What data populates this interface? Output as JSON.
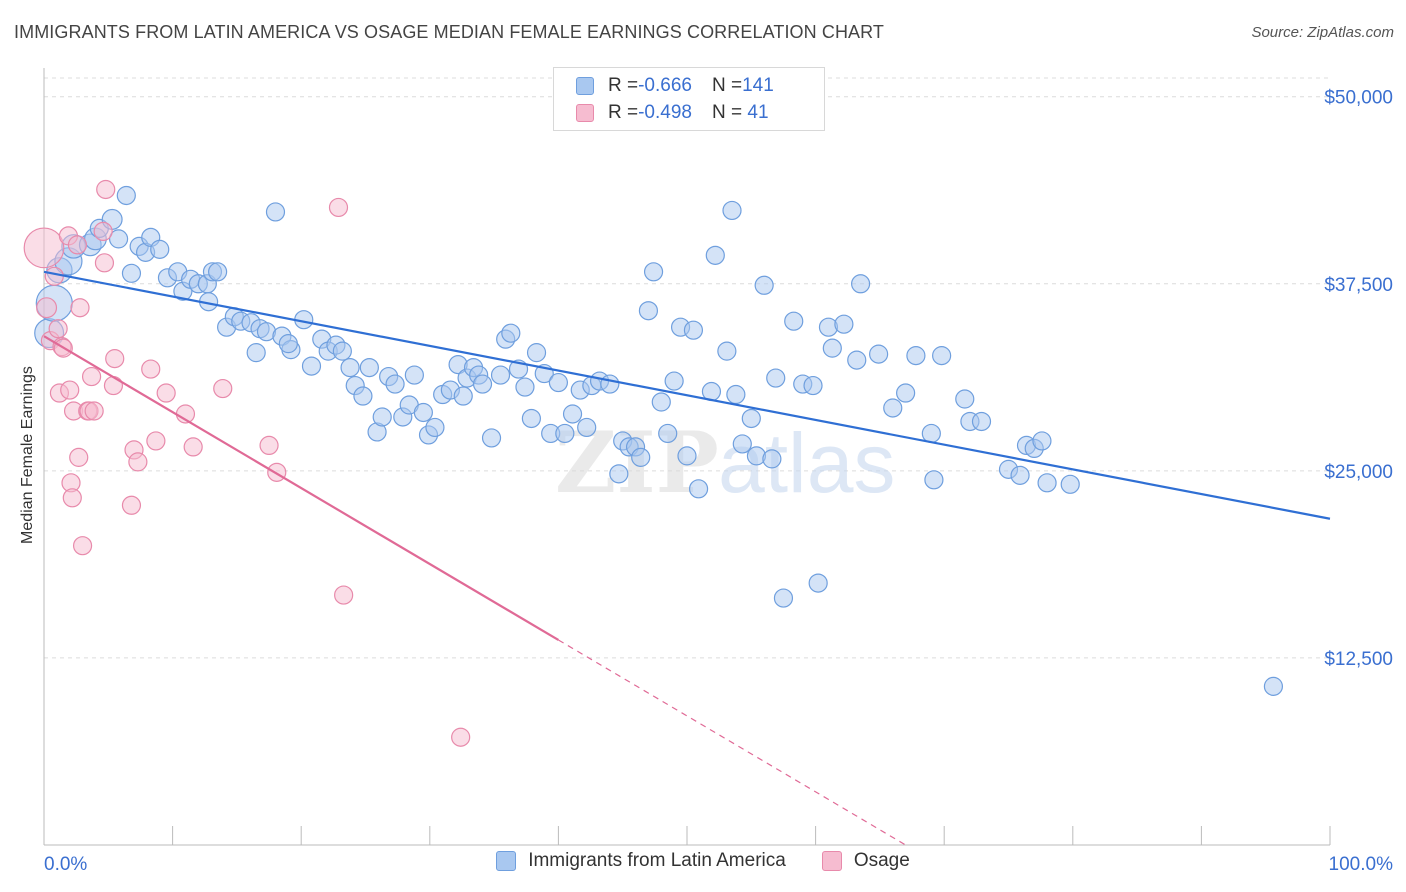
{
  "title": "IMMIGRANTS FROM LATIN AMERICA VS OSAGE MEDIAN FEMALE EARNINGS CORRELATION CHART",
  "source": "Source: ZipAtlas.com",
  "watermark": "ZIPatlas",
  "colors": {
    "blue_fill": "#a9c8f0",
    "blue_stroke": "#6f9fde",
    "blue_line": "#2f6fd4",
    "pink_fill": "#f6bcd0",
    "pink_stroke": "#e88aab",
    "pink_line": "#e06a96",
    "tick_label": "#3a6fd0",
    "grid": "#dcdcdc"
  },
  "stats": [
    {
      "r_label": "R = ",
      "r_value": "-0.666",
      "n_label": "N = ",
      "n_value": "141"
    },
    {
      "r_label": "R = ",
      "r_value": "-0.498",
      "n_label": "N = ",
      "n_value": " 41"
    }
  ],
  "chart_data": {
    "type": "scatter",
    "title": "IMMIGRANTS FROM LATIN AMERICA VS OSAGE MEDIAN FEMALE EARNINGS CORRELATION CHART",
    "xlabel": "",
    "ylabel": "Median Female Earnings",
    "xlim": [
      0,
      100
    ],
    "ylim": [
      0,
      51250
    ],
    "x_tick_labels": [
      "0.0%",
      "100.0%"
    ],
    "y_ticks": [
      12500,
      25000,
      37500,
      50000
    ],
    "y_tick_labels": [
      "$12,500",
      "$25,000",
      "$37,500",
      "$50,000"
    ],
    "grid": true,
    "legend_position": "bottom",
    "series": [
      {
        "name": "Immigrants from Latin America",
        "color": "#a9c8f0",
        "trend": {
          "x": [
            0,
            100
          ],
          "y": [
            38300,
            21800
          ]
        },
        "points": [
          [
            0.4,
            34200,
            1.6
          ],
          [
            0.8,
            36200,
            2.0
          ],
          [
            1.2,
            38400,
            1.4
          ],
          [
            1.9,
            39000,
            1.5
          ],
          [
            2.3,
            40000,
            1.3
          ],
          [
            3.6,
            40100,
            1.2
          ],
          [
            4.0,
            40500,
            1.2
          ],
          [
            4.3,
            41200,
            1.0
          ],
          [
            5.3,
            41800,
            1.1
          ],
          [
            6.4,
            43400,
            1.0
          ],
          [
            5.8,
            40500,
            1.0
          ],
          [
            6.8,
            38200,
            1.0
          ],
          [
            7.4,
            40000,
            1.0
          ],
          [
            7.9,
            39600,
            1.0
          ],
          [
            8.3,
            40600,
            1.0
          ],
          [
            9.0,
            39800,
            1.0
          ],
          [
            9.6,
            37900,
            1.0
          ],
          [
            10.4,
            38300,
            1.0
          ],
          [
            10.8,
            37000,
            1.0
          ],
          [
            11.4,
            37800,
            1.0
          ],
          [
            12.0,
            37500,
            1.0
          ],
          [
            12.7,
            37500,
            1.0
          ],
          [
            13.1,
            38300,
            1.0
          ],
          [
            13.5,
            38300,
            1.0
          ],
          [
            12.8,
            36300,
            1.0
          ],
          [
            14.2,
            34600,
            1.0
          ],
          [
            14.8,
            35300,
            1.0
          ],
          [
            15.3,
            35000,
            1.0
          ],
          [
            16.1,
            34900,
            1.0
          ],
          [
            16.8,
            34500,
            1.0
          ],
          [
            17.3,
            34300,
            1.0
          ],
          [
            16.5,
            32900,
            1.0
          ],
          [
            18.5,
            34000,
            1.0
          ],
          [
            19.2,
            33100,
            1.0
          ],
          [
            19.0,
            33500,
            1.0
          ],
          [
            18.0,
            42300,
            1.0
          ],
          [
            20.2,
            35100,
            1.0
          ],
          [
            20.8,
            32000,
            1.0
          ],
          [
            21.6,
            33800,
            1.0
          ],
          [
            22.1,
            33000,
            1.0
          ],
          [
            22.7,
            33400,
            1.0
          ],
          [
            23.2,
            33000,
            1.0
          ],
          [
            23.8,
            31900,
            1.0
          ],
          [
            24.2,
            30700,
            1.0
          ],
          [
            24.8,
            30000,
            1.0
          ],
          [
            25.3,
            31900,
            1.0
          ],
          [
            25.9,
            27600,
            1.0
          ],
          [
            26.3,
            28600,
            1.0
          ],
          [
            26.8,
            31300,
            1.0
          ],
          [
            27.3,
            30800,
            1.0
          ],
          [
            27.9,
            28600,
            1.0
          ],
          [
            28.4,
            29400,
            1.0
          ],
          [
            28.8,
            31400,
            1.0
          ],
          [
            29.5,
            28900,
            1.0
          ],
          [
            29.9,
            27400,
            1.0
          ],
          [
            30.4,
            27900,
            1.0
          ],
          [
            31.0,
            30100,
            1.0
          ],
          [
            31.6,
            30400,
            1.0
          ],
          [
            32.2,
            32100,
            1.0
          ],
          [
            32.6,
            30000,
            1.0
          ],
          [
            32.9,
            31200,
            1.0
          ],
          [
            33.4,
            31900,
            1.0
          ],
          [
            33.8,
            31400,
            1.0
          ],
          [
            34.1,
            30800,
            1.0
          ],
          [
            34.8,
            27200,
            1.0
          ],
          [
            35.5,
            31400,
            1.0
          ],
          [
            35.9,
            33800,
            1.0
          ],
          [
            36.3,
            34200,
            1.0
          ],
          [
            36.9,
            31800,
            1.0
          ],
          [
            37.4,
            30600,
            1.0
          ],
          [
            37.9,
            28500,
            1.0
          ],
          [
            38.3,
            32900,
            1.0
          ],
          [
            38.9,
            31500,
            1.0
          ],
          [
            39.4,
            27500,
            1.0
          ],
          [
            40.0,
            30900,
            1.0
          ],
          [
            40.5,
            27500,
            1.0
          ],
          [
            41.1,
            28800,
            1.0
          ],
          [
            41.7,
            30400,
            1.0
          ],
          [
            42.2,
            27900,
            1.0
          ],
          [
            42.6,
            30700,
            1.0
          ],
          [
            43.2,
            31000,
            1.0
          ],
          [
            44.0,
            30800,
            1.0
          ],
          [
            44.7,
            24800,
            1.0
          ],
          [
            45.0,
            27000,
            1.0
          ],
          [
            45.5,
            26600,
            1.0
          ],
          [
            46.0,
            26600,
            1.0
          ],
          [
            46.4,
            25900,
            1.0
          ],
          [
            47.0,
            35700,
            1.0
          ],
          [
            47.4,
            38300,
            1.0
          ],
          [
            48.0,
            29600,
            1.0
          ],
          [
            48.5,
            27500,
            1.0
          ],
          [
            49.0,
            31000,
            1.0
          ],
          [
            49.5,
            34600,
            1.0
          ],
          [
            50.0,
            26000,
            1.0
          ],
          [
            50.5,
            34400,
            1.0
          ],
          [
            50.9,
            23800,
            1.0
          ],
          [
            51.9,
            30300,
            1.0
          ],
          [
            52.2,
            39400,
            1.0
          ],
          [
            53.1,
            33000,
            1.0
          ],
          [
            53.5,
            42400,
            1.0
          ],
          [
            53.8,
            30100,
            1.0
          ],
          [
            54.3,
            26800,
            1.0
          ],
          [
            55.0,
            28500,
            1.0
          ],
          [
            55.4,
            26000,
            1.0
          ],
          [
            56.0,
            37400,
            1.0
          ],
          [
            56.6,
            25800,
            1.0
          ],
          [
            56.9,
            31200,
            1.0
          ],
          [
            57.5,
            16500,
            1.0
          ],
          [
            58.3,
            35000,
            1.0
          ],
          [
            59.0,
            30800,
            1.0
          ],
          [
            59.8,
            30700,
            1.0
          ],
          [
            60.2,
            17500,
            1.0
          ],
          [
            61.0,
            34600,
            1.0
          ],
          [
            61.3,
            33200,
            1.0
          ],
          [
            62.2,
            34800,
            1.0
          ],
          [
            63.2,
            32400,
            1.0
          ],
          [
            63.5,
            37500,
            1.0
          ],
          [
            64.9,
            32800,
            1.0
          ],
          [
            66.0,
            29200,
            1.0
          ],
          [
            67.0,
            30200,
            1.0
          ],
          [
            67.8,
            32700,
            1.0
          ],
          [
            69.0,
            27500,
            1.0
          ],
          [
            69.2,
            24400,
            1.0
          ],
          [
            69.8,
            32700,
            1.0
          ],
          [
            71.6,
            29800,
            1.0
          ],
          [
            72.0,
            28300,
            1.0
          ],
          [
            72.9,
            28300,
            1.0
          ],
          [
            75.0,
            25100,
            1.0
          ],
          [
            75.9,
            24700,
            1.0
          ],
          [
            76.4,
            26700,
            1.0
          ],
          [
            77.0,
            26500,
            1.0
          ],
          [
            77.6,
            27000,
            1.0
          ],
          [
            78.0,
            24200,
            1.0
          ],
          [
            79.8,
            24100,
            1.0
          ],
          [
            95.6,
            10600,
            1.0
          ]
        ]
      },
      {
        "name": "Osage",
        "color": "#f6bcd0",
        "trend": {
          "x": [
            0,
            40
          ],
          "y": [
            34000,
            13700
          ]
        },
        "trend_dashed": {
          "x": [
            40,
            67
          ],
          "y": [
            13700,
            0
          ]
        },
        "points": [
          [
            0.0,
            39900,
            2.2
          ],
          [
            0.2,
            35900,
            1.1
          ],
          [
            0.5,
            33700,
            1.0
          ],
          [
            0.8,
            38000,
            1.0
          ],
          [
            1.1,
            34500,
            1.0
          ],
          [
            1.2,
            30200,
            1.0
          ],
          [
            1.4,
            33300,
            1.0
          ],
          [
            1.5,
            33200,
            1.0
          ],
          [
            1.9,
            40700,
            1.0
          ],
          [
            2.0,
            30400,
            1.0
          ],
          [
            2.1,
            24200,
            1.0
          ],
          [
            2.2,
            23200,
            1.0
          ],
          [
            2.3,
            29000,
            1.0
          ],
          [
            2.6,
            40100,
            1.0
          ],
          [
            2.7,
            25900,
            1.0
          ],
          [
            2.8,
            35900,
            1.0
          ],
          [
            3.0,
            20000,
            1.0
          ],
          [
            3.4,
            29000,
            1.0
          ],
          [
            3.5,
            29000,
            1.0
          ],
          [
            3.7,
            31300,
            1.0
          ],
          [
            3.9,
            29000,
            1.0
          ],
          [
            4.6,
            41000,
            1.0
          ],
          [
            4.7,
            38900,
            1.0
          ],
          [
            4.8,
            43800,
            1.0
          ],
          [
            5.4,
            30700,
            1.0
          ],
          [
            5.5,
            32500,
            1.0
          ],
          [
            6.8,
            22700,
            1.0
          ],
          [
            7.0,
            26400,
            1.0
          ],
          [
            7.3,
            25600,
            1.0
          ],
          [
            8.3,
            31800,
            1.0
          ],
          [
            8.7,
            27000,
            1.0
          ],
          [
            9.5,
            30200,
            1.0
          ],
          [
            11.0,
            28800,
            1.0
          ],
          [
            11.6,
            26600,
            1.0
          ],
          [
            13.9,
            30500,
            1.0
          ],
          [
            17.5,
            26700,
            1.0
          ],
          [
            18.1,
            24900,
            1.0
          ],
          [
            22.9,
            42600,
            1.0
          ],
          [
            23.3,
            16700,
            1.0
          ],
          [
            32.4,
            7200,
            1.0
          ]
        ]
      }
    ]
  }
}
